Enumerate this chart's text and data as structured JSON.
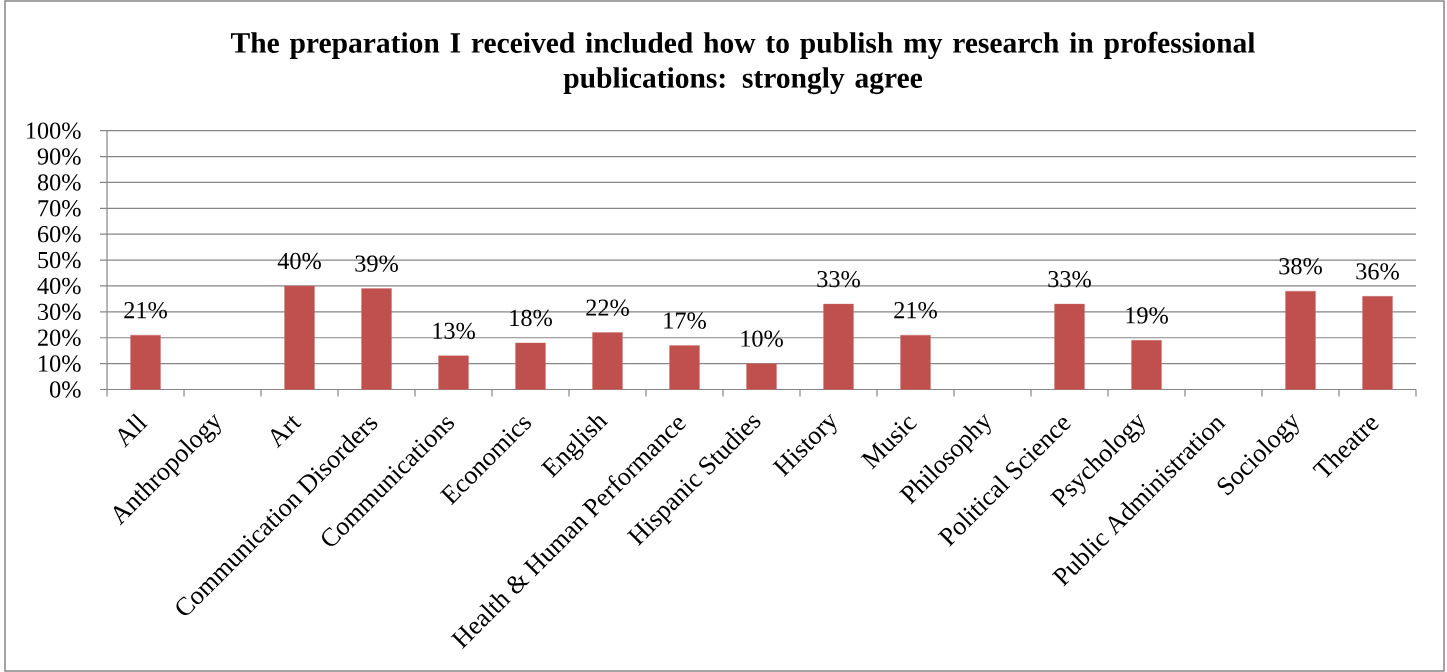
{
  "chart_data": {
    "type": "bar",
    "title": "The preparation I received included how to publish my research in professional publications: strongly agree",
    "categories": [
      "All",
      "Anthropology",
      "Art",
      "Communication Disorders",
      "Communications",
      "Economics",
      "English",
      "Health & Human Performance",
      "Hispanic Studies",
      "History",
      "Music",
      "Philosophy",
      "Political Science",
      "Psychology",
      "Public Administration",
      "Sociology",
      "Theatre"
    ],
    "values": [
      21,
      null,
      40,
      39,
      13,
      18,
      22,
      17,
      10,
      33,
      21,
      null,
      33,
      19,
      null,
      38,
      36
    ],
    "value_labels": [
      "21%",
      null,
      "40%",
      "39%",
      "13%",
      "18%",
      "22%",
      "17%",
      "10%",
      "33%",
      "21%",
      null,
      "33%",
      "19%",
      null,
      "38%",
      "36%"
    ],
    "color": "#c0504d",
    "ylim": [
      0,
      100
    ],
    "yticks": [
      {
        "value": 0,
        "label": "0%"
      },
      {
        "value": 10,
        "label": "10%"
      },
      {
        "value": 20,
        "label": "20%"
      },
      {
        "value": 30,
        "label": "30%"
      },
      {
        "value": 40,
        "label": "40%"
      },
      {
        "value": 50,
        "label": "50%"
      },
      {
        "value": 60,
        "label": "60%"
      },
      {
        "value": 70,
        "label": "70%"
      },
      {
        "value": 80,
        "label": "80%"
      },
      {
        "value": 90,
        "label": "90%"
      },
      {
        "value": 100,
        "label": "100%"
      }
    ],
    "grid": "y"
  }
}
